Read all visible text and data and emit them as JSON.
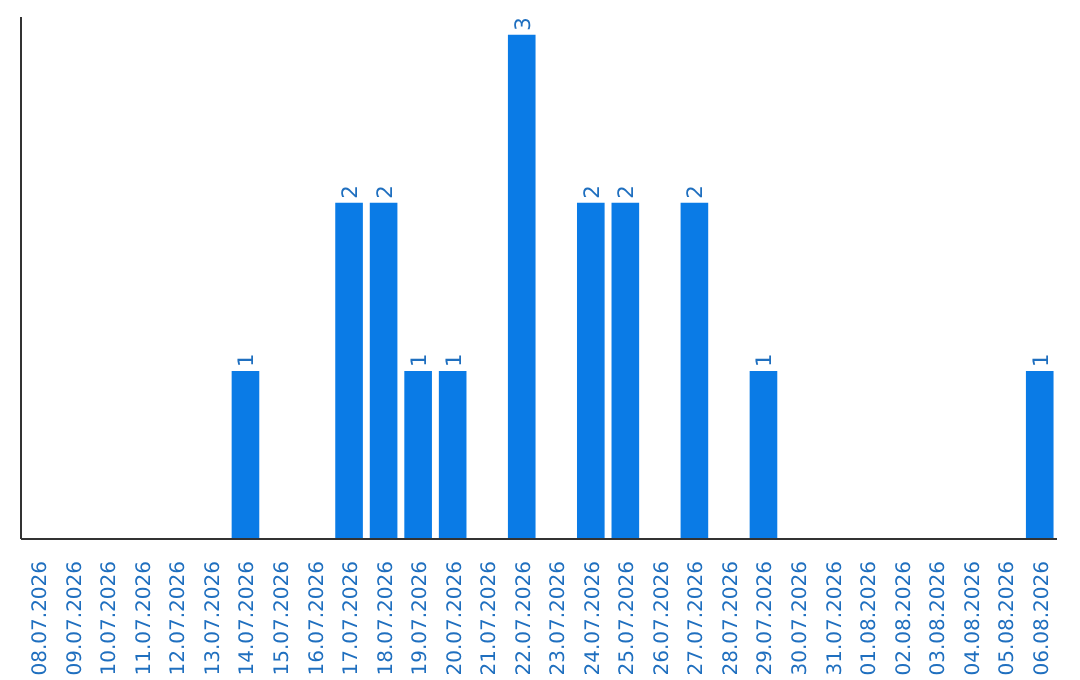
{
  "chart_data": {
    "type": "bar",
    "categories": [
      "08.07.2026",
      "09.07.2026",
      "10.07.2026",
      "11.07.2026",
      "12.07.2026",
      "13.07.2026",
      "14.07.2026",
      "15.07.2026",
      "16.07.2026",
      "17.07.2026",
      "18.07.2026",
      "19.07.2026",
      "20.07.2026",
      "21.07.2026",
      "22.07.2026",
      "23.07.2026",
      "24.07.2026",
      "25.07.2026",
      "26.07.2026",
      "27.07.2026",
      "28.07.2026",
      "29.07.2026",
      "30.07.2026",
      "31.07.2026",
      "01.08.2026",
      "02.08.2026",
      "03.08.2026",
      "04.08.2026",
      "05.08.2026",
      "06.08.2026"
    ],
    "values": [
      0,
      0,
      0,
      0,
      0,
      0,
      1,
      0,
      0,
      2,
      2,
      1,
      1,
      0,
      3,
      0,
      2,
      2,
      0,
      2,
      0,
      1,
      0,
      0,
      0,
      0,
      0,
      0,
      0,
      1
    ],
    "value_labels": [
      null,
      null,
      null,
      null,
      null,
      null,
      "1",
      null,
      null,
      "2",
      "2",
      "1",
      "1",
      null,
      "3",
      null,
      "2",
      "2",
      null,
      "2",
      null,
      "1",
      null,
      null,
      null,
      null,
      null,
      null,
      null,
      "1"
    ],
    "color": "#0a7be6",
    "grid": false
  }
}
